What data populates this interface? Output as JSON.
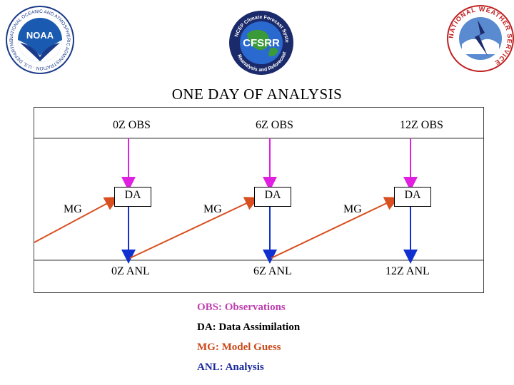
{
  "header": {
    "noaa_logo_text": "NOAA",
    "noaa_ring_text": "NATIONAL OCEANIC AND ATMOSPHERIC ADMINISTRATION · U.S. DEPARTMENT OF COMMERCE",
    "cfsrr_logo_text": "CFSRR",
    "cfsrr_ring_top": "NCEP Climate Forecast System",
    "cfsrr_ring_bottom": "Reanalysis and Reforecast",
    "nws_ring_text": "NATIONAL WEATHER SERVICE"
  },
  "title": "ONE DAY OF ANALYSIS",
  "columns": [
    {
      "obs": "0Z OBS",
      "da": "DA",
      "anl": "0Z ANL",
      "mg": "MG"
    },
    {
      "obs": "6Z OBS",
      "da": "DA",
      "anl": "6Z ANL",
      "mg": "MG"
    },
    {
      "obs": "12Z OBS",
      "da": "DA",
      "anl": "12Z ANL",
      "mg": "MG"
    }
  ],
  "legend": [
    {
      "text": "OBS: Observations",
      "color": "#c040b0"
    },
    {
      "text": "DA: Data Assimilation",
      "color": "#000000"
    },
    {
      "text": "MG: Model Guess",
      "color": "#c84a1a"
    },
    {
      "text": "ANL: Analysis",
      "color": "#1a2a9a"
    }
  ],
  "colors": {
    "obs_arrow": "#e020e0",
    "anl_arrow": "#1030d0",
    "mg_arrow": "#d85020"
  }
}
